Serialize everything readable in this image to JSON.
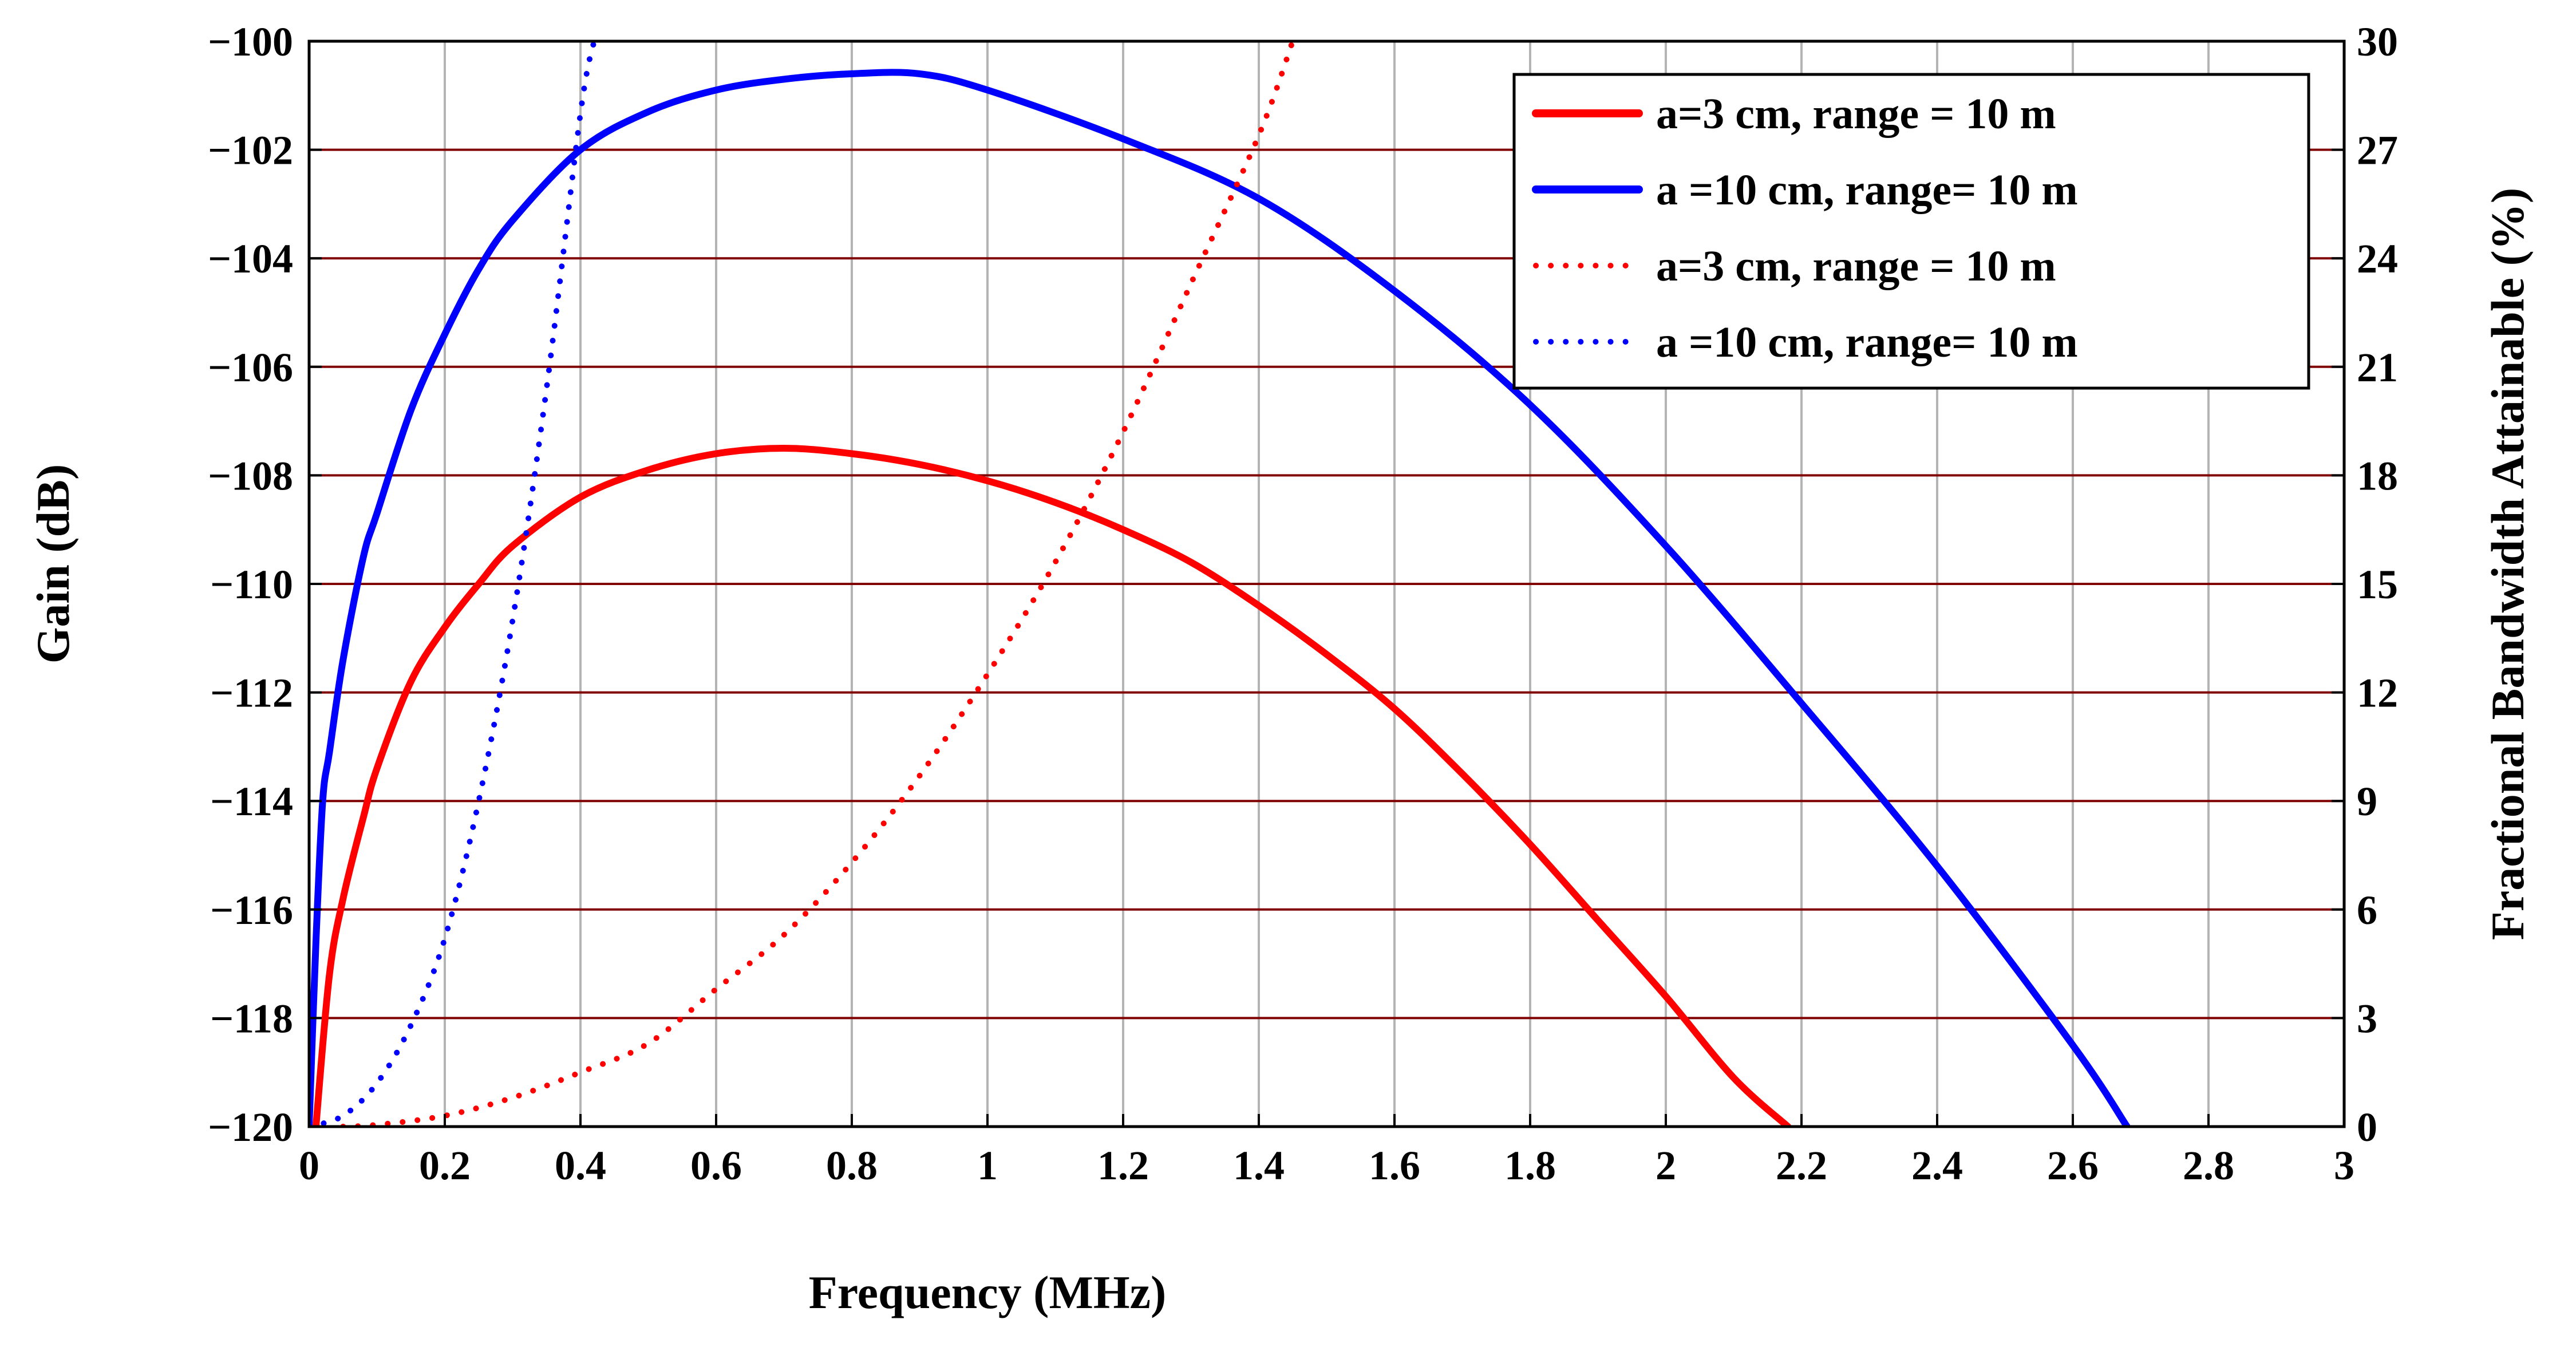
{
  "chart_data": {
    "type": "line",
    "title": "",
    "xlabel": "Frequency (MHz)",
    "ylabel": "Gain (dB)",
    "y2label": "Fractional Bandwidth Attainable (%)",
    "xlim": [
      0,
      3
    ],
    "ylim": [
      -120,
      -100
    ],
    "y2lim": [
      0,
      30
    ],
    "grid": true,
    "legend_position": "top-right",
    "x_ticks": [
      "0",
      "0.2",
      "0.4",
      "0.6",
      "0.8",
      "1",
      "1.2",
      "1.4",
      "1.6",
      "1.8",
      "2",
      "2.2",
      "2.4",
      "2.6",
      "2.8",
      "3"
    ],
    "y_ticks": [
      "−100",
      "−102",
      "−104",
      "−106",
      "−108",
      "−110",
      "−112",
      "−114",
      "−116",
      "−118",
      "−120"
    ],
    "y2_ticks": [
      "30",
      "27",
      "24",
      "21",
      "18",
      "15",
      "12",
      "9",
      "6",
      "3",
      "0"
    ],
    "series": [
      {
        "name": "a=3 cm, range = 10 m",
        "axis": "left",
        "style": "solid",
        "color": "#ff0000",
        "x": [
          0.01,
          0.03,
          0.05,
          0.08,
          0.1,
          0.15,
          0.2,
          0.25,
          0.3,
          0.4,
          0.5,
          0.6,
          0.7,
          0.8,
          0.9,
          1.0,
          1.1,
          1.2,
          1.3,
          1.4,
          1.5,
          1.6,
          1.7,
          1.8,
          1.9,
          2.0,
          2.1,
          2.18
        ],
        "y": [
          -120,
          -117.2,
          -115.8,
          -114.3,
          -113.4,
          -111.8,
          -110.8,
          -110.0,
          -109.3,
          -108.4,
          -107.9,
          -107.6,
          -107.5,
          -107.6,
          -107.8,
          -108.1,
          -108.5,
          -109.0,
          -109.6,
          -110.4,
          -111.3,
          -112.3,
          -113.5,
          -114.8,
          -116.2,
          -117.6,
          -119.1,
          -120
        ]
      },
      {
        "name": "a =10 cm, range= 10 m",
        "axis": "left",
        "style": "solid",
        "color": "#0000ff",
        "x": [
          0.0,
          0.01,
          0.02,
          0.03,
          0.05,
          0.08,
          0.1,
          0.15,
          0.2,
          0.25,
          0.3,
          0.4,
          0.5,
          0.6,
          0.7,
          0.8,
          0.9,
          1.0,
          1.2,
          1.4,
          1.6,
          1.8,
          2.0,
          2.2,
          2.4,
          2.6,
          2.68
        ],
        "y": [
          -120,
          -116.6,
          -114.0,
          -113.1,
          -111.4,
          -109.5,
          -108.7,
          -106.8,
          -105.4,
          -104.2,
          -103.3,
          -102.0,
          -101.3,
          -100.9,
          -100.7,
          -100.6,
          -100.6,
          -100.9,
          -101.8,
          -102.9,
          -104.6,
          -106.7,
          -109.3,
          -112.2,
          -115.2,
          -118.5,
          -120
        ]
      },
      {
        "name": "a=3 cm, range = 10 m",
        "axis": "right",
        "style": "dotted",
        "color": "#ff0000",
        "x": [
          0.05,
          0.1,
          0.2,
          0.3,
          0.4,
          0.5,
          0.6,
          0.7,
          0.8,
          0.9,
          1.0,
          1.1,
          1.2,
          1.3,
          1.4,
          1.45
        ],
        "y": [
          0.0,
          0.05,
          0.3,
          0.8,
          1.5,
          2.3,
          3.8,
          5.3,
          7.3,
          9.7,
          12.5,
          15.6,
          19.2,
          23.3,
          27.4,
          30.0
        ]
      },
      {
        "name": "a =10 cm, range= 10 m",
        "axis": "right",
        "style": "dotted",
        "color": "#0000ff",
        "x": [
          0.0,
          0.05,
          0.1,
          0.15,
          0.2,
          0.25,
          0.3,
          0.35,
          0.4,
          0.42
        ],
        "y": [
          0.0,
          0.3,
          1.2,
          2.8,
          5.2,
          9.0,
          14.0,
          20.4,
          28.0,
          30.0
        ]
      }
    ]
  }
}
